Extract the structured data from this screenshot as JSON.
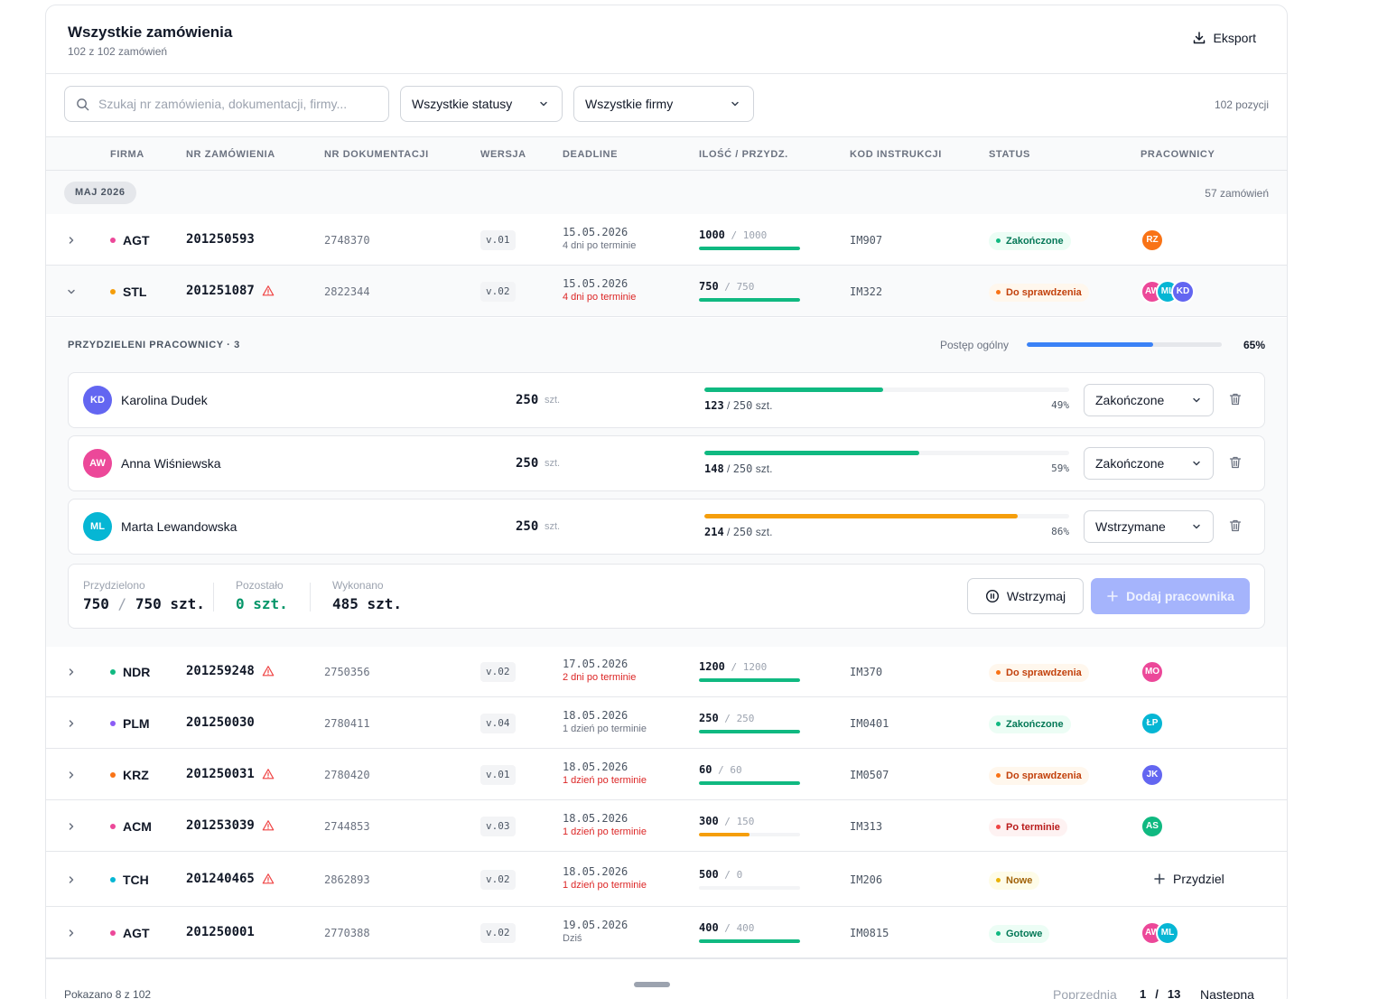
{
  "header": {
    "title": "Wszystkie zamówienia",
    "subtitle": "102 z 102 zamówień",
    "export_label": "Eksport"
  },
  "filters": {
    "search_placeholder": "Szukaj nr zamówienia, dokumentacji, firmy...",
    "status_select": "Wszystkie statusy",
    "company_select": "Wszystkie firmy",
    "positions": "102 pozycji"
  },
  "columns": [
    "FIRMA",
    "NR ZAMÓWIENIA",
    "NR DOKUMENTACJI",
    "WERSJA",
    "DEADLINE",
    "ILOŚĆ / PRZYDZ.",
    "KOD INSTRUKCJI",
    "STATUS",
    "PRACOWNICY"
  ],
  "group": {
    "label": "MAJ 2026",
    "count": "57 zamówień"
  },
  "orders": [
    {
      "firma": "AGT",
      "dot_color": "#ec4899",
      "nr": "201250593",
      "warning": false,
      "doc": "2748370",
      "ver": "v.01",
      "date": "15.05.2026",
      "note": "4 dni po terminie",
      "note_color": "gray",
      "qty": "1000",
      "total": "1000",
      "fill": 1.0,
      "bar_color": "#10b981",
      "code": "IM907",
      "status": "Zakończone",
      "status_kind": "green",
      "workers": [
        {
          "initials": "RZ",
          "color": "#f97316"
        }
      ]
    },
    {
      "firma": "STL",
      "dot_color": "#f59e0b",
      "nr": "201251087",
      "warning": true,
      "doc": "2822344",
      "ver": "v.02",
      "date": "15.05.2026",
      "note": "4 dni po terminie",
      "note_color": "red",
      "qty": "750",
      "total": "750",
      "fill": 1.0,
      "bar_color": "#10b981",
      "code": "IM322",
      "status": "Do sprawdzenia",
      "status_kind": "orange",
      "workers": [
        {
          "initials": "AW",
          "color": "#ec4899"
        },
        {
          "initials": "ML",
          "color": "#06b6d4"
        },
        {
          "initials": "KD",
          "color": "#6366f1"
        }
      ]
    },
    {
      "firma": "NDR",
      "dot_color": "#10b981",
      "nr": "201259248",
      "warning": true,
      "doc": "2750356",
      "ver": "v.02",
      "date": "17.05.2026",
      "note": "2 dni po terminie",
      "note_color": "red",
      "qty": "1200",
      "total": "1200",
      "fill": 1.0,
      "bar_color": "#10b981",
      "code": "IM370",
      "status": "Do sprawdzenia",
      "status_kind": "orange",
      "workers": [
        {
          "initials": "MO",
          "color": "#ec4899"
        }
      ]
    },
    {
      "firma": "PLM",
      "dot_color": "#8b5cf6",
      "nr": "201250030",
      "warning": false,
      "doc": "2780411",
      "ver": "v.04",
      "date": "18.05.2026",
      "note": "1 dzień po terminie",
      "note_color": "gray",
      "qty": "250",
      "total": "250",
      "fill": 1.0,
      "bar_color": "#10b981",
      "code": "IM0401",
      "status": "Zakończone",
      "status_kind": "green",
      "workers": [
        {
          "initials": "ŁP",
          "color": "#06b6d4"
        }
      ]
    },
    {
      "firma": "KRZ",
      "dot_color": "#f97316",
      "nr": "201250031",
      "warning": true,
      "doc": "2780420",
      "ver": "v.01",
      "date": "18.05.2026",
      "note": "1 dzień po terminie",
      "note_color": "red",
      "qty": "60",
      "total": "60",
      "fill": 1.0,
      "bar_color": "#10b981",
      "code": "IM0507",
      "status": "Do sprawdzenia",
      "status_kind": "orange",
      "workers": [
        {
          "initials": "JK",
          "color": "#6366f1"
        }
      ]
    },
    {
      "firma": "ACM",
      "dot_color": "#ec4899",
      "nr": "201253039",
      "warning": true,
      "doc": "2744853",
      "ver": "v.03",
      "date": "18.05.2026",
      "note": "1 dzień po terminie",
      "note_color": "red",
      "qty": "300",
      "total": "150",
      "fill": 0.5,
      "bar_color": "#f59e0b",
      "code": "IM313",
      "status": "Po terminie",
      "status_kind": "red",
      "workers": [
        {
          "initials": "AS",
          "color": "#10b981"
        }
      ]
    },
    {
      "firma": "TCH",
      "dot_color": "#06b6d4",
      "nr": "201240465",
      "warning": true,
      "doc": "2862893",
      "ver": "v.02",
      "date": "18.05.2026",
      "note": "1 dzień po terminie",
      "note_color": "red",
      "qty": "500",
      "total": "0",
      "fill": 0.0,
      "bar_color": "#10b981",
      "code": "IM206",
      "status": "Nowe",
      "status_kind": "yellow",
      "workers": [],
      "assign_label": "Przydziel"
    },
    {
      "firma": "AGT",
      "dot_color": "#ec4899",
      "nr": "201250001",
      "warning": false,
      "doc": "2770388",
      "ver": "v.02",
      "date": "19.05.2026",
      "note": "Dziś",
      "note_color": "gray",
      "qty": "400",
      "total": "400",
      "fill": 1.0,
      "bar_color": "#10b981",
      "code": "IM0815",
      "status": "Gotowe",
      "status_kind": "green",
      "workers": [
        {
          "initials": "AW",
          "color": "#ec4899"
        },
        {
          "initials": "ML",
          "color": "#06b6d4"
        }
      ]
    }
  ],
  "expanded": {
    "title": "PRZYDZIELENI PRACOWNICY · 3",
    "overall_label": "Postęp ogólny",
    "overall_progress": 0.65,
    "overall_pct": "65%",
    "unit": "szt.",
    "workers": [
      {
        "initials": "KD",
        "color": "#6366f1",
        "name": "Karolina Dudek",
        "qty": "250",
        "done": "123",
        "total": "250",
        "progress": 0.49,
        "pct": "49%",
        "bar_color": "#10b981",
        "status": "Zakończone"
      },
      {
        "initials": "AW",
        "color": "#ec4899",
        "name": "Anna Wiśniewska",
        "qty": "250",
        "done": "148",
        "total": "250",
        "progress": 0.59,
        "pct": "59%",
        "bar_color": "#10b981",
        "status": "Zakończone"
      },
      {
        "initials": "ML",
        "color": "#06b6d4",
        "name": "Marta Lewandowska",
        "qty": "250",
        "done": "214",
        "total": "250",
        "progress": 0.86,
        "pct": "86%",
        "bar_color": "#f59e0b",
        "status": "Wstrzymane"
      }
    ],
    "summary": {
      "assigned_label": "Przydzielono",
      "assigned_value": "750",
      "assigned_total": "750 szt.",
      "remaining_label": "Pozostało",
      "remaining_value": "0 szt.",
      "done_label": "Wykonano",
      "done_value": "485 szt.",
      "pause_label": "Wstrzymaj",
      "add_label": "Dodaj pracownika"
    }
  },
  "footer": {
    "shown": "Pokazano 8 z 102",
    "prev": "Poprzednia",
    "page_current": "1",
    "page_sep": "/",
    "page_total": "13",
    "next": "Następna"
  }
}
